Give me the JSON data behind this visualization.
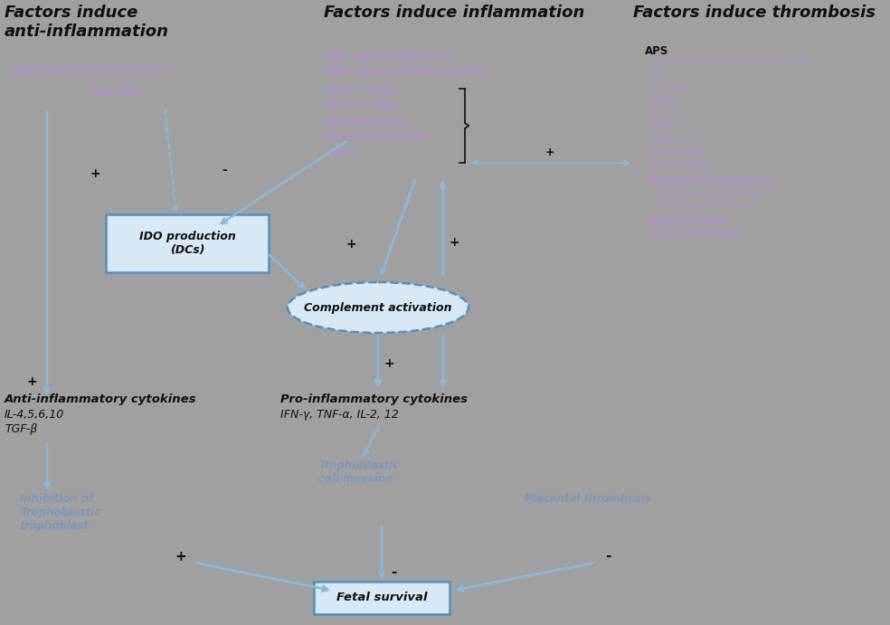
{
  "bg_color": "#a0a0a0",
  "ac": "#8ab8d8",
  "ac2": "#6aa0c8",
  "bk": "#111111",
  "pu": "#b090d0",
  "bl": "#8098b8",
  "title_anti": "Factors induce\nanti-inflammation",
  "title_inflam": "Factors induce inflammation",
  "title_thromb": "Factors induce thrombosis",
  "anti1": "uNK cells with inhibitory KIr",
  "anti2": "Treg cells",
  "inflam_items": [
    "pNK cells(CD56bright)",
    "uNK cells with activating KIr",
    "CD4+ T cells",
    "CD8+ T cells",
    "Hyperglycemia",
    "Insulin resistance",
    "  APS"
  ],
  "thromb_aps": "APS",
  "thromb_items": [
    "Inherited thrombophilic mutation",
    "FVL",
    "PT gene",
    "MTHFR",
    "PAI-1",
    "HPA-1",
    "Factor XIII",
    "β-fibrinogen",
    "Antithrombin",
    "Acquired thrombophilia",
    "  Protein C/S  deficiency",
    "  Factor VIII deficiency",
    "Hyperglycemia",
    "Insulin resistance"
  ],
  "ido_label": "IDO production\n(DCs)",
  "comp_label": "Complement activation",
  "anti_cyto_title": "Anti-inflammatory cytokines",
  "anti_cyto_sub1": "IL-4,5,6,10",
  "anti_cyto_sub2": "TGF-β",
  "pro_cyto_title": "Pro-inflammatory cytokines",
  "pro_cyto_sub": "IFN-γ, TNF-α, IL-2, 12",
  "troph": "Trophoblastic\ncell invasion",
  "inhibit": "Inhibition of\nTrophoblastic\ntrophoblast",
  "placental": "Placental thrombosis",
  "fetal": "Fetal survival"
}
